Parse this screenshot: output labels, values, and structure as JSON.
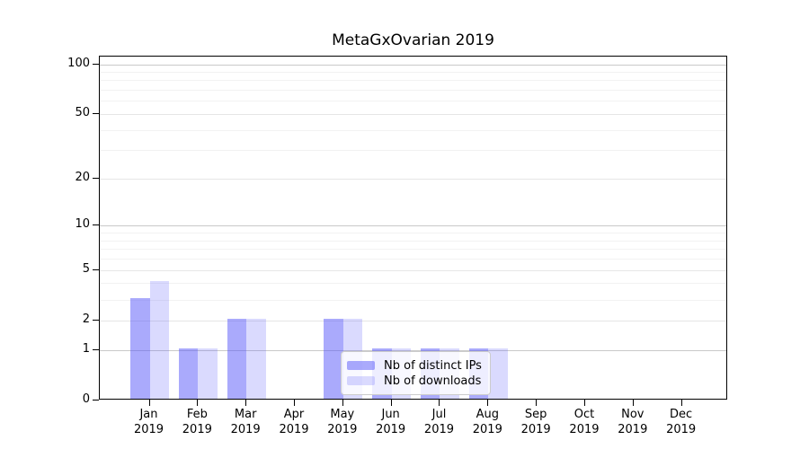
{
  "chart_data": {
    "type": "bar",
    "title": "MetaGxOvarian 2019",
    "categories": [
      "Jan 2019",
      "Feb 2019",
      "Mar 2019",
      "Apr 2019",
      "May 2019",
      "Jun 2019",
      "Jul 2019",
      "Aug 2019",
      "Sep 2019",
      "Oct 2019",
      "Nov 2019",
      "Dec 2019"
    ],
    "series": [
      {
        "name": "Nb of distinct IPs",
        "color": "rgba(85,85,250,0.5)",
        "values": [
          3,
          1,
          2,
          0,
          2,
          1,
          1,
          1,
          0,
          0,
          0,
          0
        ]
      },
      {
        "name": "Nb of downloads",
        "color": "rgba(85,85,250,0.22)",
        "values": [
          4,
          1,
          2,
          0,
          2,
          1,
          1,
          1,
          0,
          0,
          0,
          0
        ]
      }
    ],
    "xlabel": "",
    "ylabel": "",
    "yscale": "log1p",
    "ylim": [
      0,
      100
    ],
    "yticks": [
      0,
      1,
      2,
      5,
      10,
      20,
      50,
      100
    ],
    "minor_gridlines": [
      3,
      4,
      6,
      7,
      8,
      9,
      30,
      40,
      60,
      70,
      80,
      90
    ],
    "grid": true,
    "legend_position": "inside-lower-center",
    "colors": {
      "decade_gridline": "#c9c9c9",
      "major_gridline": "#e6e6e6",
      "minor_gridline": "#f2f2f2",
      "axis": "#000000",
      "legend_border": "#cccccc"
    }
  }
}
